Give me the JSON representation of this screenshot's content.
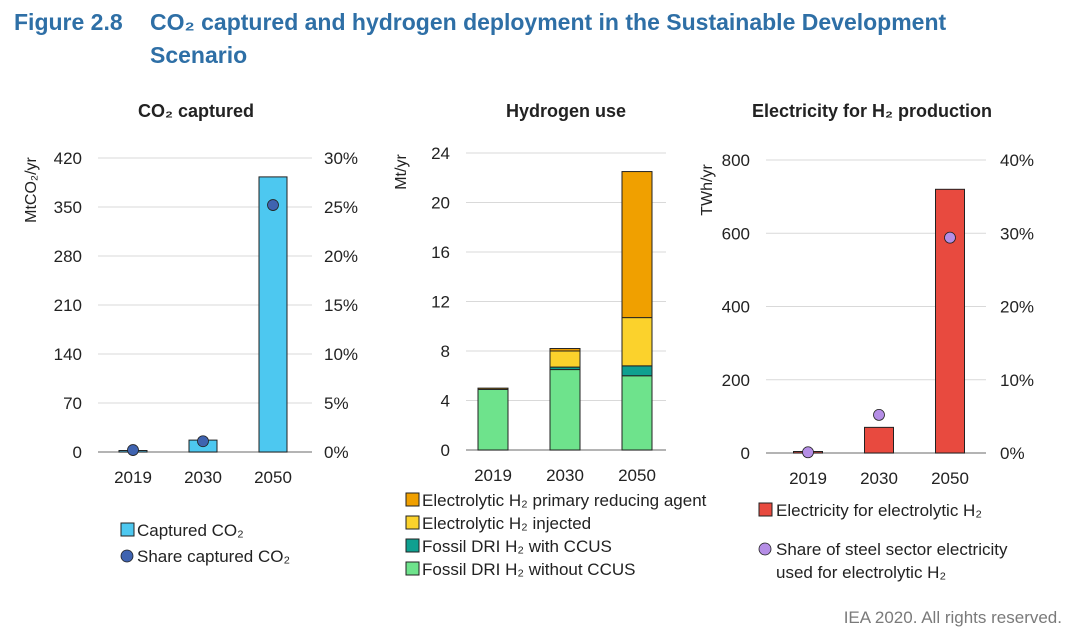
{
  "figure": {
    "number": "Figure 2.8",
    "title_line1": "CO₂ captured and hydrogen deployment in the Sustainable Development",
    "title_line2": "Scenario"
  },
  "credit": "IEA 2020. All rights reserved.",
  "chart_data": [
    {
      "type": "bar",
      "title": "CO₂ captured",
      "categories": [
        "2019",
        "2030",
        "2050"
      ],
      "ylabel": "MtCO₂/yr",
      "ylim": [
        0,
        420
      ],
      "yticks": [
        0,
        70,
        140,
        210,
        280,
        350,
        420
      ],
      "y2lim": [
        0,
        30
      ],
      "y2ticks": [
        "0%",
        "5%",
        "10%",
        "15%",
        "20%",
        "25%",
        "30%"
      ],
      "series": [
        {
          "name": "Captured CO₂",
          "kind": "bar",
          "axis": "left",
          "color": "#4dc8f0",
          "values": [
            2,
            17,
            393
          ]
        },
        {
          "name": "Share captured CO₂",
          "kind": "marker",
          "axis": "right",
          "color": "#3f63b0",
          "values": [
            0.2,
            1.1,
            25.2
          ]
        }
      ],
      "legend": [
        "Captured CO₂",
        "Share captured CO₂"
      ]
    },
    {
      "type": "bar",
      "stacked": true,
      "title": "Hydrogen use",
      "categories": [
        "2019",
        "2030",
        "2050"
      ],
      "ylabel": "Mt/yr",
      "ylim": [
        0,
        24
      ],
      "yticks": [
        0,
        4,
        8,
        12,
        16,
        20,
        24
      ],
      "series": [
        {
          "name": "Fossil DRI H₂ without CCUS",
          "color": "#6ee38c",
          "values": [
            4.9,
            6.5,
            6.0
          ]
        },
        {
          "name": "Fossil DRI H₂ with CCUS",
          "color": "#0fa090",
          "values": [
            0,
            0.2,
            0.8
          ]
        },
        {
          "name": "Electrolytic H₂ injected",
          "color": "#fbd22c",
          "values": [
            0,
            1.3,
            3.9
          ]
        },
        {
          "name": "Electrolytic H₂ primary reducing agent",
          "color": "#f0a000",
          "values": [
            0.1,
            0.2,
            11.8
          ]
        }
      ],
      "legend": [
        "Electrolytic H₂ primary reducing agent",
        "Electrolytic H₂ injected",
        "Fossil DRI H₂ with CCUS",
        "Fossil DRI H₂ without CCUS"
      ]
    },
    {
      "type": "bar",
      "title": "Electricity for H₂ production",
      "categories": [
        "2019",
        "2030",
        "2050"
      ],
      "ylabel": "TWh/yr",
      "ylim": [
        0,
        800
      ],
      "yticks": [
        0,
        200,
        400,
        600,
        800
      ],
      "y2lim": [
        0,
        40
      ],
      "y2ticks": [
        "0%",
        "10%",
        "20%",
        "30%",
        "40%"
      ],
      "series": [
        {
          "name": "Electricity for electrolytic H₂",
          "kind": "bar",
          "axis": "left",
          "color": "#e84a3f",
          "values": [
            0,
            70,
            720
          ]
        },
        {
          "name": "Share of steel sector electricity used for electrolytic H₂",
          "kind": "marker",
          "axis": "right",
          "color": "#b58ee6",
          "values": [
            0.1,
            5.2,
            29.4
          ]
        }
      ],
      "legend": [
        "Electricity for electrolytic H₂",
        "Share of steel sector electricity used for electrolytic H₂"
      ]
    }
  ]
}
